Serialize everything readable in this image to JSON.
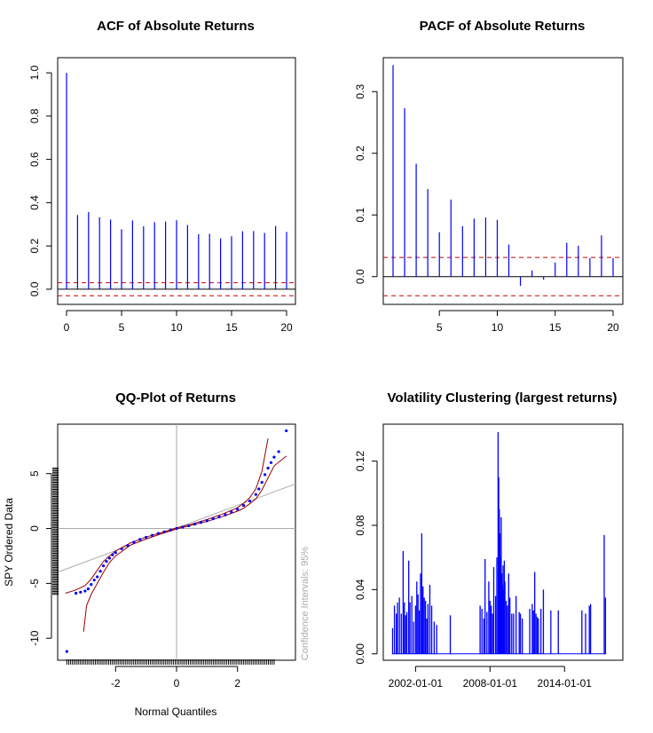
{
  "chart_data": [
    {
      "type": "bar",
      "title": "ACF of Absolute Returns",
      "xlabel": "",
      "ylabel": "",
      "xlim": [
        0,
        20
      ],
      "ylim": [
        -0.07,
        1.07
      ],
      "x_ticks": [
        0,
        5,
        10,
        15,
        20
      ],
      "y_ticks": [
        0.0,
        0.2,
        0.4,
        0.6,
        0.8,
        1.0
      ],
      "y_tick_labels": [
        "0.0",
        "0.2",
        "0.4",
        "0.6",
        "0.8",
        "1.0"
      ],
      "lags": [
        0,
        1,
        2,
        3,
        4,
        5,
        6,
        7,
        8,
        9,
        10,
        11,
        12,
        13,
        14,
        15,
        16,
        17,
        18,
        19,
        20
      ],
      "values": [
        1.0,
        0.343,
        0.357,
        0.333,
        0.322,
        0.277,
        0.318,
        0.291,
        0.31,
        0.313,
        0.319,
        0.297,
        0.255,
        0.256,
        0.235,
        0.245,
        0.268,
        0.269,
        0.26,
        0.292,
        0.265
      ],
      "confidence_band": [
        -0.03,
        0.03
      ],
      "colors": {
        "spikes": "#0000ff",
        "band": "#cc0000",
        "zero": "#000000"
      }
    },
    {
      "type": "bar",
      "title": "PACF of Absolute Returns",
      "xlabel": "",
      "ylabel": "",
      "xlim": [
        1,
        20
      ],
      "ylim": [
        -0.045,
        0.355
      ],
      "x_ticks": [
        5,
        10,
        15,
        20
      ],
      "y_ticks": [
        0.0,
        0.1,
        0.2,
        0.3
      ],
      "y_tick_labels": [
        "0.0",
        "0.1",
        "0.2",
        "0.3"
      ],
      "lags": [
        1,
        2,
        3,
        4,
        5,
        6,
        7,
        8,
        9,
        10,
        11,
        12,
        13,
        14,
        15,
        16,
        17,
        18,
        19,
        20
      ],
      "values": [
        0.343,
        0.273,
        0.183,
        0.142,
        0.072,
        0.125,
        0.082,
        0.094,
        0.096,
        0.092,
        0.052,
        -0.015,
        0.01,
        -0.005,
        0.023,
        0.055,
        0.05,
        0.03,
        0.067,
        0.03
      ],
      "confidence_band": [
        -0.031,
        0.031
      ],
      "colors": {
        "spikes": "#0000ff",
        "band": "#cc0000",
        "zero": "#000000"
      }
    },
    {
      "type": "scatter",
      "title": "QQ-Plot of Returns",
      "xlabel": "Normal Quantiles",
      "ylabel": "SPY Ordered Data",
      "side_label": "Confidence Intervals: 95%",
      "xlim": [
        -3.9,
        3.9
      ],
      "ylim": [
        -12,
        9.5
      ],
      "x_ticks": [
        -2,
        0,
        2
      ],
      "y_ticks": [
        -10,
        -5,
        0,
        5
      ],
      "points": [
        [
          -3.6,
          -11.2
        ],
        [
          -3.3,
          -5.9
        ],
        [
          -3.15,
          -5.8
        ],
        [
          -3.0,
          -5.7
        ],
        [
          -2.9,
          -5.5
        ],
        [
          -2.8,
          -5.1
        ],
        [
          -2.7,
          -4.7
        ],
        [
          -2.6,
          -4.4
        ],
        [
          -2.5,
          -3.9
        ],
        [
          -2.4,
          -3.4
        ],
        [
          -2.3,
          -3.0
        ],
        [
          -2.2,
          -2.7
        ],
        [
          -2.1,
          -2.4
        ],
        [
          -2.0,
          -2.2
        ],
        [
          -1.8,
          -1.85
        ],
        [
          -1.6,
          -1.55
        ],
        [
          -1.4,
          -1.25
        ],
        [
          -1.2,
          -1.0
        ],
        [
          -1.0,
          -0.8
        ],
        [
          -0.8,
          -0.62
        ],
        [
          -0.6,
          -0.45
        ],
        [
          -0.4,
          -0.3
        ],
        [
          -0.2,
          -0.15
        ],
        [
          0.0,
          0.0
        ],
        [
          0.2,
          0.12
        ],
        [
          0.4,
          0.25
        ],
        [
          0.6,
          0.4
        ],
        [
          0.8,
          0.55
        ],
        [
          1.0,
          0.7
        ],
        [
          1.2,
          0.88
        ],
        [
          1.4,
          1.05
        ],
        [
          1.6,
          1.25
        ],
        [
          1.8,
          1.5
        ],
        [
          2.0,
          1.75
        ],
        [
          2.2,
          2.1
        ],
        [
          2.4,
          2.5
        ],
        [
          2.6,
          3.1
        ],
        [
          2.7,
          3.6
        ],
        [
          2.8,
          4.2
        ],
        [
          2.9,
          4.9
        ],
        [
          3.0,
          5.5
        ],
        [
          3.1,
          6.0
        ],
        [
          3.2,
          6.5
        ],
        [
          3.35,
          7.0
        ],
        [
          3.6,
          8.9
        ]
      ],
      "reference_line": {
        "slope": 1.03,
        "intercept": 0.04
      },
      "ci_upper": [
        [
          -3.65,
          -5.9
        ],
        [
          -3.3,
          -5.6
        ],
        [
          -3.0,
          -5.2
        ],
        [
          -2.8,
          -4.6
        ],
        [
          -2.6,
          -3.8
        ],
        [
          -2.4,
          -3.0
        ],
        [
          -2.2,
          -2.5
        ],
        [
          -2.0,
          -2.05
        ],
        [
          -1.5,
          -1.3
        ],
        [
          -1.0,
          -0.78
        ],
        [
          -0.5,
          -0.38
        ],
        [
          0.0,
          0.05
        ],
        [
          0.5,
          0.4
        ],
        [
          1.0,
          0.82
        ],
        [
          1.5,
          1.3
        ],
        [
          2.0,
          1.9
        ],
        [
          2.2,
          2.3
        ],
        [
          2.4,
          2.8
        ],
        [
          2.6,
          3.6
        ],
        [
          2.8,
          5.2
        ],
        [
          3.0,
          8.2
        ]
      ],
      "ci_lower": [
        [
          -3.05,
          -9.4
        ],
        [
          -2.95,
          -7.0
        ],
        [
          -2.8,
          -6.0
        ],
        [
          -2.6,
          -5.0
        ],
        [
          -2.4,
          -4.0
        ],
        [
          -2.2,
          -3.1
        ],
        [
          -2.0,
          -2.5
        ],
        [
          -1.5,
          -1.5
        ],
        [
          -1.0,
          -0.95
        ],
        [
          -0.5,
          -0.48
        ],
        [
          0.0,
          -0.05
        ],
        [
          0.5,
          0.3
        ],
        [
          1.0,
          0.65
        ],
        [
          1.5,
          1.08
        ],
        [
          2.0,
          1.58
        ],
        [
          2.2,
          1.85
        ],
        [
          2.4,
          2.25
        ],
        [
          2.6,
          2.7
        ],
        [
          2.8,
          3.5
        ],
        [
          3.0,
          4.6
        ],
        [
          3.2,
          5.7
        ],
        [
          3.6,
          6.6
        ]
      ],
      "colors": {
        "points": "#0000ff",
        "ci": "#990000",
        "reference": "#aaaaaa"
      }
    },
    {
      "type": "bar",
      "title": "Volatility Clustering (largest returns)",
      "xlabel": "",
      "ylabel": "",
      "xlim": [
        1999.4,
        2018.7
      ],
      "ylim": [
        -0.004,
        0.143
      ],
      "x_ticks": [
        2002,
        2008,
        2014
      ],
      "x_tick_labels": [
        "2002-01-01",
        "2008-01-01",
        "2014-01-01"
      ],
      "y_ticks": [
        0.0,
        0.04,
        0.08,
        0.12
      ],
      "y_tick_labels": [
        "0.00",
        "0.04",
        "0.08",
        "0.12"
      ],
      "x": [
        2000.15,
        2000.3,
        2000.45,
        2000.55,
        2000.7,
        2000.85,
        2001.0,
        2001.1,
        2001.2,
        2001.3,
        2001.45,
        2001.55,
        2001.7,
        2001.85,
        2002.0,
        2002.1,
        2002.2,
        2002.3,
        2002.4,
        2002.5,
        2002.55,
        2002.6,
        2002.7,
        2002.8,
        2002.9,
        2003.0,
        2003.15,
        2003.3,
        2003.5,
        2003.7,
        2004.8,
        2007.2,
        2007.35,
        2007.5,
        2007.6,
        2007.75,
        2007.9,
        2008.0,
        2008.1,
        2008.2,
        2008.3,
        2008.45,
        2008.55,
        2008.65,
        2008.7,
        2008.75,
        2008.8,
        2008.85,
        2008.9,
        2008.95,
        2009.0,
        2009.05,
        2009.1,
        2009.15,
        2009.2,
        2009.3,
        2009.4,
        2009.5,
        2009.6,
        2009.75,
        2009.9,
        2010.1,
        2010.35,
        2010.45,
        2010.6,
        2011.2,
        2011.4,
        2011.5,
        2011.6,
        2011.7,
        2011.8,
        2011.9,
        2012.1,
        2012.3,
        2012.9,
        2013.5,
        2015.4,
        2015.7,
        2016.0,
        2016.1,
        2017.2,
        2017.3
      ],
      "values": [
        0.016,
        0.03,
        0.025,
        0.032,
        0.035,
        0.025,
        0.064,
        0.032,
        0.024,
        0.026,
        0.058,
        0.032,
        0.036,
        0.02,
        0.03,
        0.045,
        0.037,
        0.027,
        0.05,
        0.075,
        0.04,
        0.042,
        0.035,
        0.033,
        0.022,
        0.031,
        0.043,
        0.03,
        0.02,
        0.018,
        0.024,
        0.03,
        0.028,
        0.022,
        0.059,
        0.026,
        0.045,
        0.033,
        0.03,
        0.025,
        0.054,
        0.036,
        0.06,
        0.138,
        0.11,
        0.09,
        0.075,
        0.06,
        0.085,
        0.05,
        0.043,
        0.055,
        0.04,
        0.058,
        0.045,
        0.033,
        0.03,
        0.05,
        0.035,
        0.025,
        0.025,
        0.036,
        0.026,
        0.025,
        0.022,
        0.028,
        0.031,
        0.027,
        0.051,
        0.025,
        0.023,
        0.022,
        0.028,
        0.04,
        0.027,
        0.027,
        0.027,
        0.025,
        0.03,
        0.031,
        0.074,
        0.035
      ],
      "colors": {
        "bars": "#0000ff",
        "baseline": "#0000ff"
      }
    }
  ]
}
